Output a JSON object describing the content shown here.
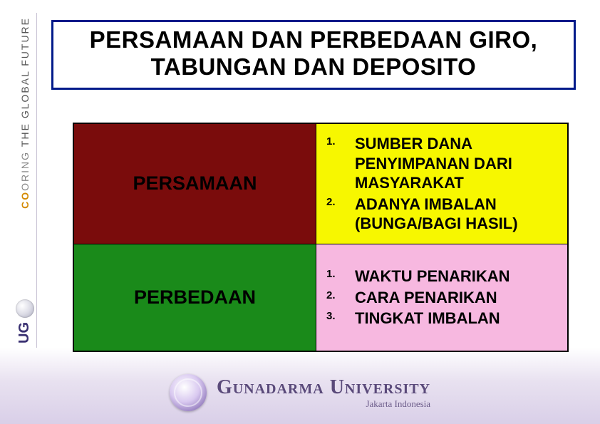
{
  "colors": {
    "title_border": "#001a8a",
    "cell_red": "#7a0c0c",
    "cell_yellow": "#f7f700",
    "cell_green": "#1a8a1a",
    "cell_pink": "#f7b8e0",
    "text_black": "#000000",
    "uni_purple": "#5a4a7a"
  },
  "left_strip": {
    "ug": "UG",
    "co": "CO",
    "oring": "ORING",
    "rest": "THE GLOBAL FUTURE"
  },
  "title": "PERSAMAAN DAN PERBEDAAN GIRO, TABUNGAN DAN DEPOSITO",
  "table": {
    "rows": [
      {
        "label": "PERSAMAAN",
        "label_bg": "#7a0c0c",
        "items_bg": "#f7f700",
        "items": [
          "SUMBER DANA PENYIMPANAN DARI MASYARAKAT",
          "ADANYA IMBALAN (BUNGA/BAGI HASIL)"
        ]
      },
      {
        "label": "PERBEDAAN",
        "label_bg": "#1a8a1a",
        "items_bg": "#f7b8e0",
        "items": [
          "WAKTU PENARIKAN",
          "CARA PENARIKAN",
          "TINGKAT IMBALAN"
        ]
      }
    ]
  },
  "footer": {
    "name": "Gunadarma University",
    "sub": "Jakarta Indonesia"
  }
}
